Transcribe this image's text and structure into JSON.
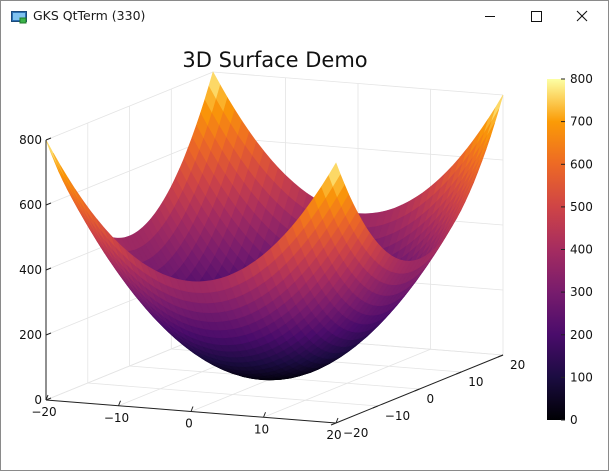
{
  "window": {
    "title": "GKS QtTerm (330)",
    "icon": "monitor-icon",
    "controls": [
      "minimize-icon",
      "maximize-icon",
      "close-icon"
    ]
  },
  "chart_data": {
    "type": "surface",
    "title": "3D Surface Demo",
    "function": "z = x^2 + y^2",
    "x": {
      "range": [
        -20,
        20
      ],
      "ticks": [
        -20,
        -10,
        0,
        10,
        20
      ],
      "tick_labels": [
        "−20",
        "−10",
        "0",
        "10",
        "20"
      ]
    },
    "y": {
      "range": [
        -20,
        20
      ],
      "ticks": [
        -20,
        -10,
        0,
        10,
        20
      ],
      "tick_labels": [
        "−20",
        "−10",
        "0",
        "10",
        "20"
      ]
    },
    "z": {
      "range": [
        0,
        800
      ],
      "ticks": [
        0,
        200,
        400,
        600,
        800
      ],
      "tick_labels": [
        "0",
        "200",
        "400",
        "600",
        "800"
      ]
    },
    "colorbar": {
      "range": [
        0,
        800
      ],
      "ticks": [
        0,
        100,
        200,
        300,
        400,
        500,
        600,
        700,
        800
      ],
      "tick_labels": [
        "0",
        "100",
        "200",
        "300",
        "400",
        "500",
        "600",
        "700",
        "800"
      ],
      "colormap": "inferno"
    },
    "grid": true
  }
}
